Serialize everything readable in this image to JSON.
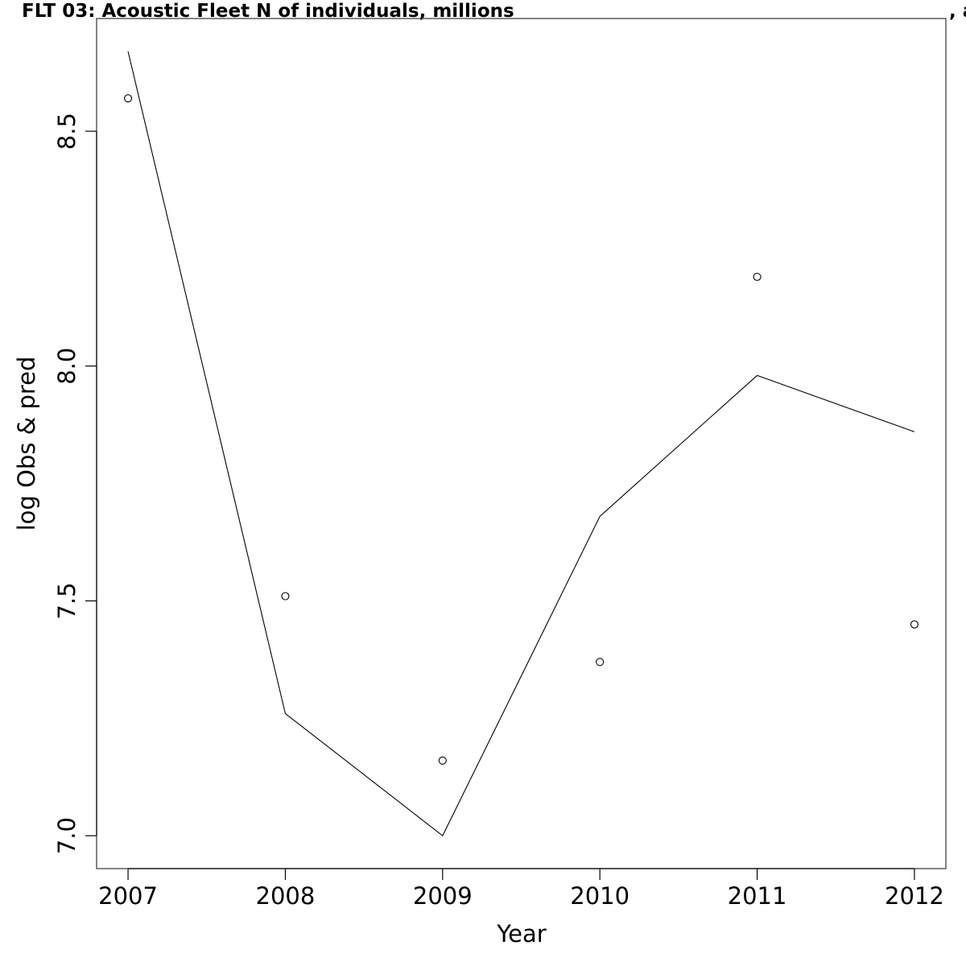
{
  "chart_data": {
    "type": "line",
    "title": "FLT 03: Acoustic Fleet   N of individuals, millions",
    "title_clipped": ", a",
    "xlabel": "Year",
    "ylabel": "log Obs & pred",
    "x": [
      2007,
      2008,
      2009,
      2010,
      2011,
      2012
    ],
    "xticks": [
      "2007",
      "2008",
      "2009",
      "2010",
      "2011",
      "2012"
    ],
    "yticks": [
      "7.0",
      "7.5",
      "8.0",
      "8.5"
    ],
    "xlim": [
      2006.8,
      2012.2
    ],
    "ylim": [
      6.93,
      8.74
    ],
    "grid": false,
    "series": [
      {
        "kind": "line",
        "values": [
          8.67,
          7.26,
          7.0,
          7.68,
          7.98,
          7.86
        ]
      },
      {
        "kind": "points",
        "values": [
          8.57,
          7.51,
          7.16,
          7.37,
          8.19,
          7.45
        ]
      }
    ],
    "colors": {
      "line": "#000000",
      "points": "#000000",
      "axes": "#000000",
      "background": "#ffffff"
    }
  }
}
